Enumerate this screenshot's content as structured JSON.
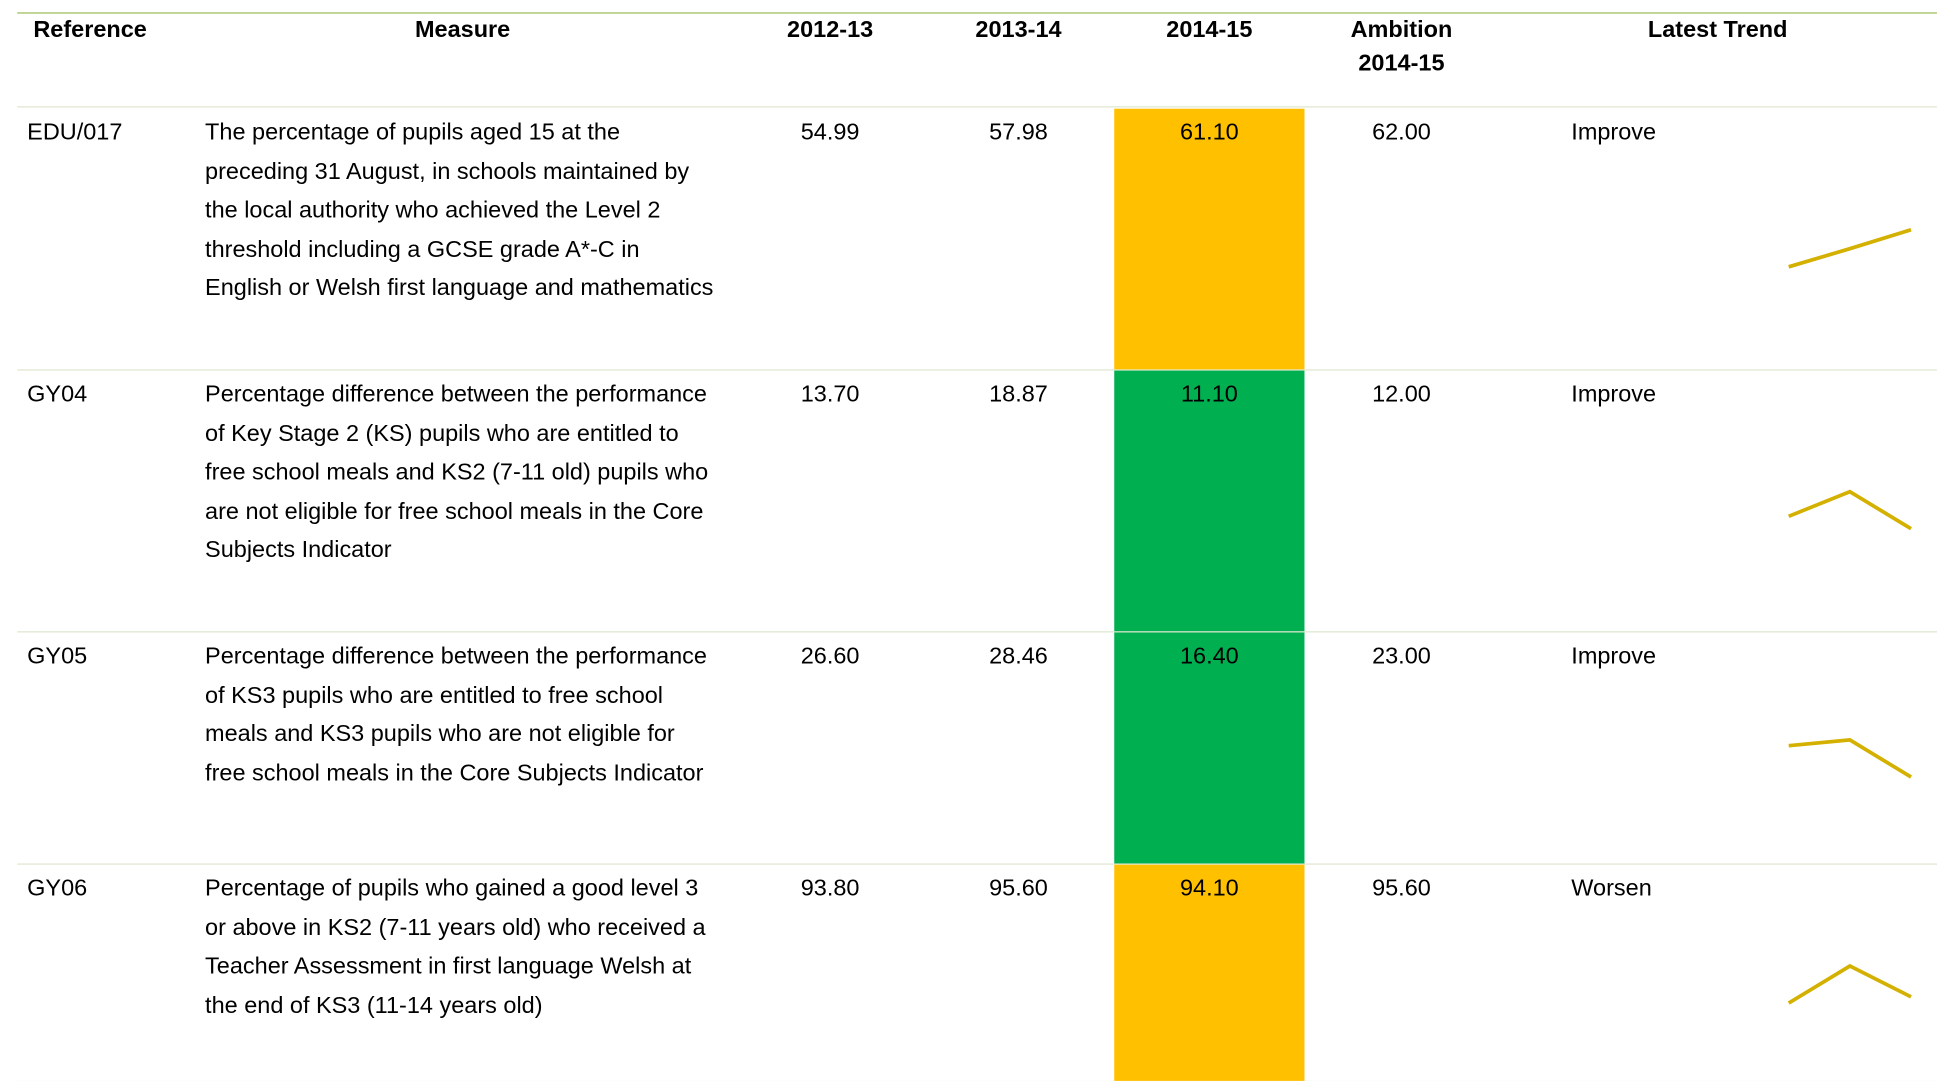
{
  "header": {
    "columns": [
      "Reference",
      "Measure",
      "2012-13",
      "2013-14",
      "2014-15",
      "Ambition 2014-15",
      "Latest Trend"
    ]
  },
  "rows": [
    {
      "reference": "EDU/017",
      "measure": "The percentage of pupils aged 15 at the preceding 31 August, in schools maintained by the local authority who achieved the Level 2 threshold including a GCSE grade A*-C in English or Welsh first language and mathematics",
      "values": [
        "54.99",
        "57.98",
        "61.10"
      ],
      "ambition": "62.00",
      "trend": "Improve",
      "status_color": "#ffc000"
    },
    {
      "reference": "GY04",
      "measure": "Percentage difference between the performance of Key Stage 2 (KS) pupils who are entitled to free school meals and KS2 (7-11 old) pupils who are not eligible for free school meals in the Core Subjects Indicator",
      "values": [
        "13.70",
        "18.87",
        "11.10"
      ],
      "ambition": "12.00",
      "trend": "Improve",
      "status_color": "#00b050"
    },
    {
      "reference": "GY05",
      "measure": "Percentage difference between the performance of KS3 pupils who are entitled to free school meals and KS3 pupils who are not eligible for free school meals in the Core Subjects Indicator",
      "values": [
        "26.60",
        "28.46",
        "16.40"
      ],
      "ambition": "23.00",
      "trend": "Improve",
      "status_color": "#00b050"
    },
    {
      "reference": "GY06",
      "measure": "Percentage of pupils who gained a good level 3 or above in KS2 (7-11 years old) who received a Teacher Assessment in first language Welsh at the end of KS3 (11-14 years old)",
      "values": [
        "93.80",
        "95.60",
        "94.10"
      ],
      "ambition": "95.60",
      "trend": "Worsen",
      "status_color": "#ffc000"
    }
  ],
  "sparkline_color": "#d4b000"
}
